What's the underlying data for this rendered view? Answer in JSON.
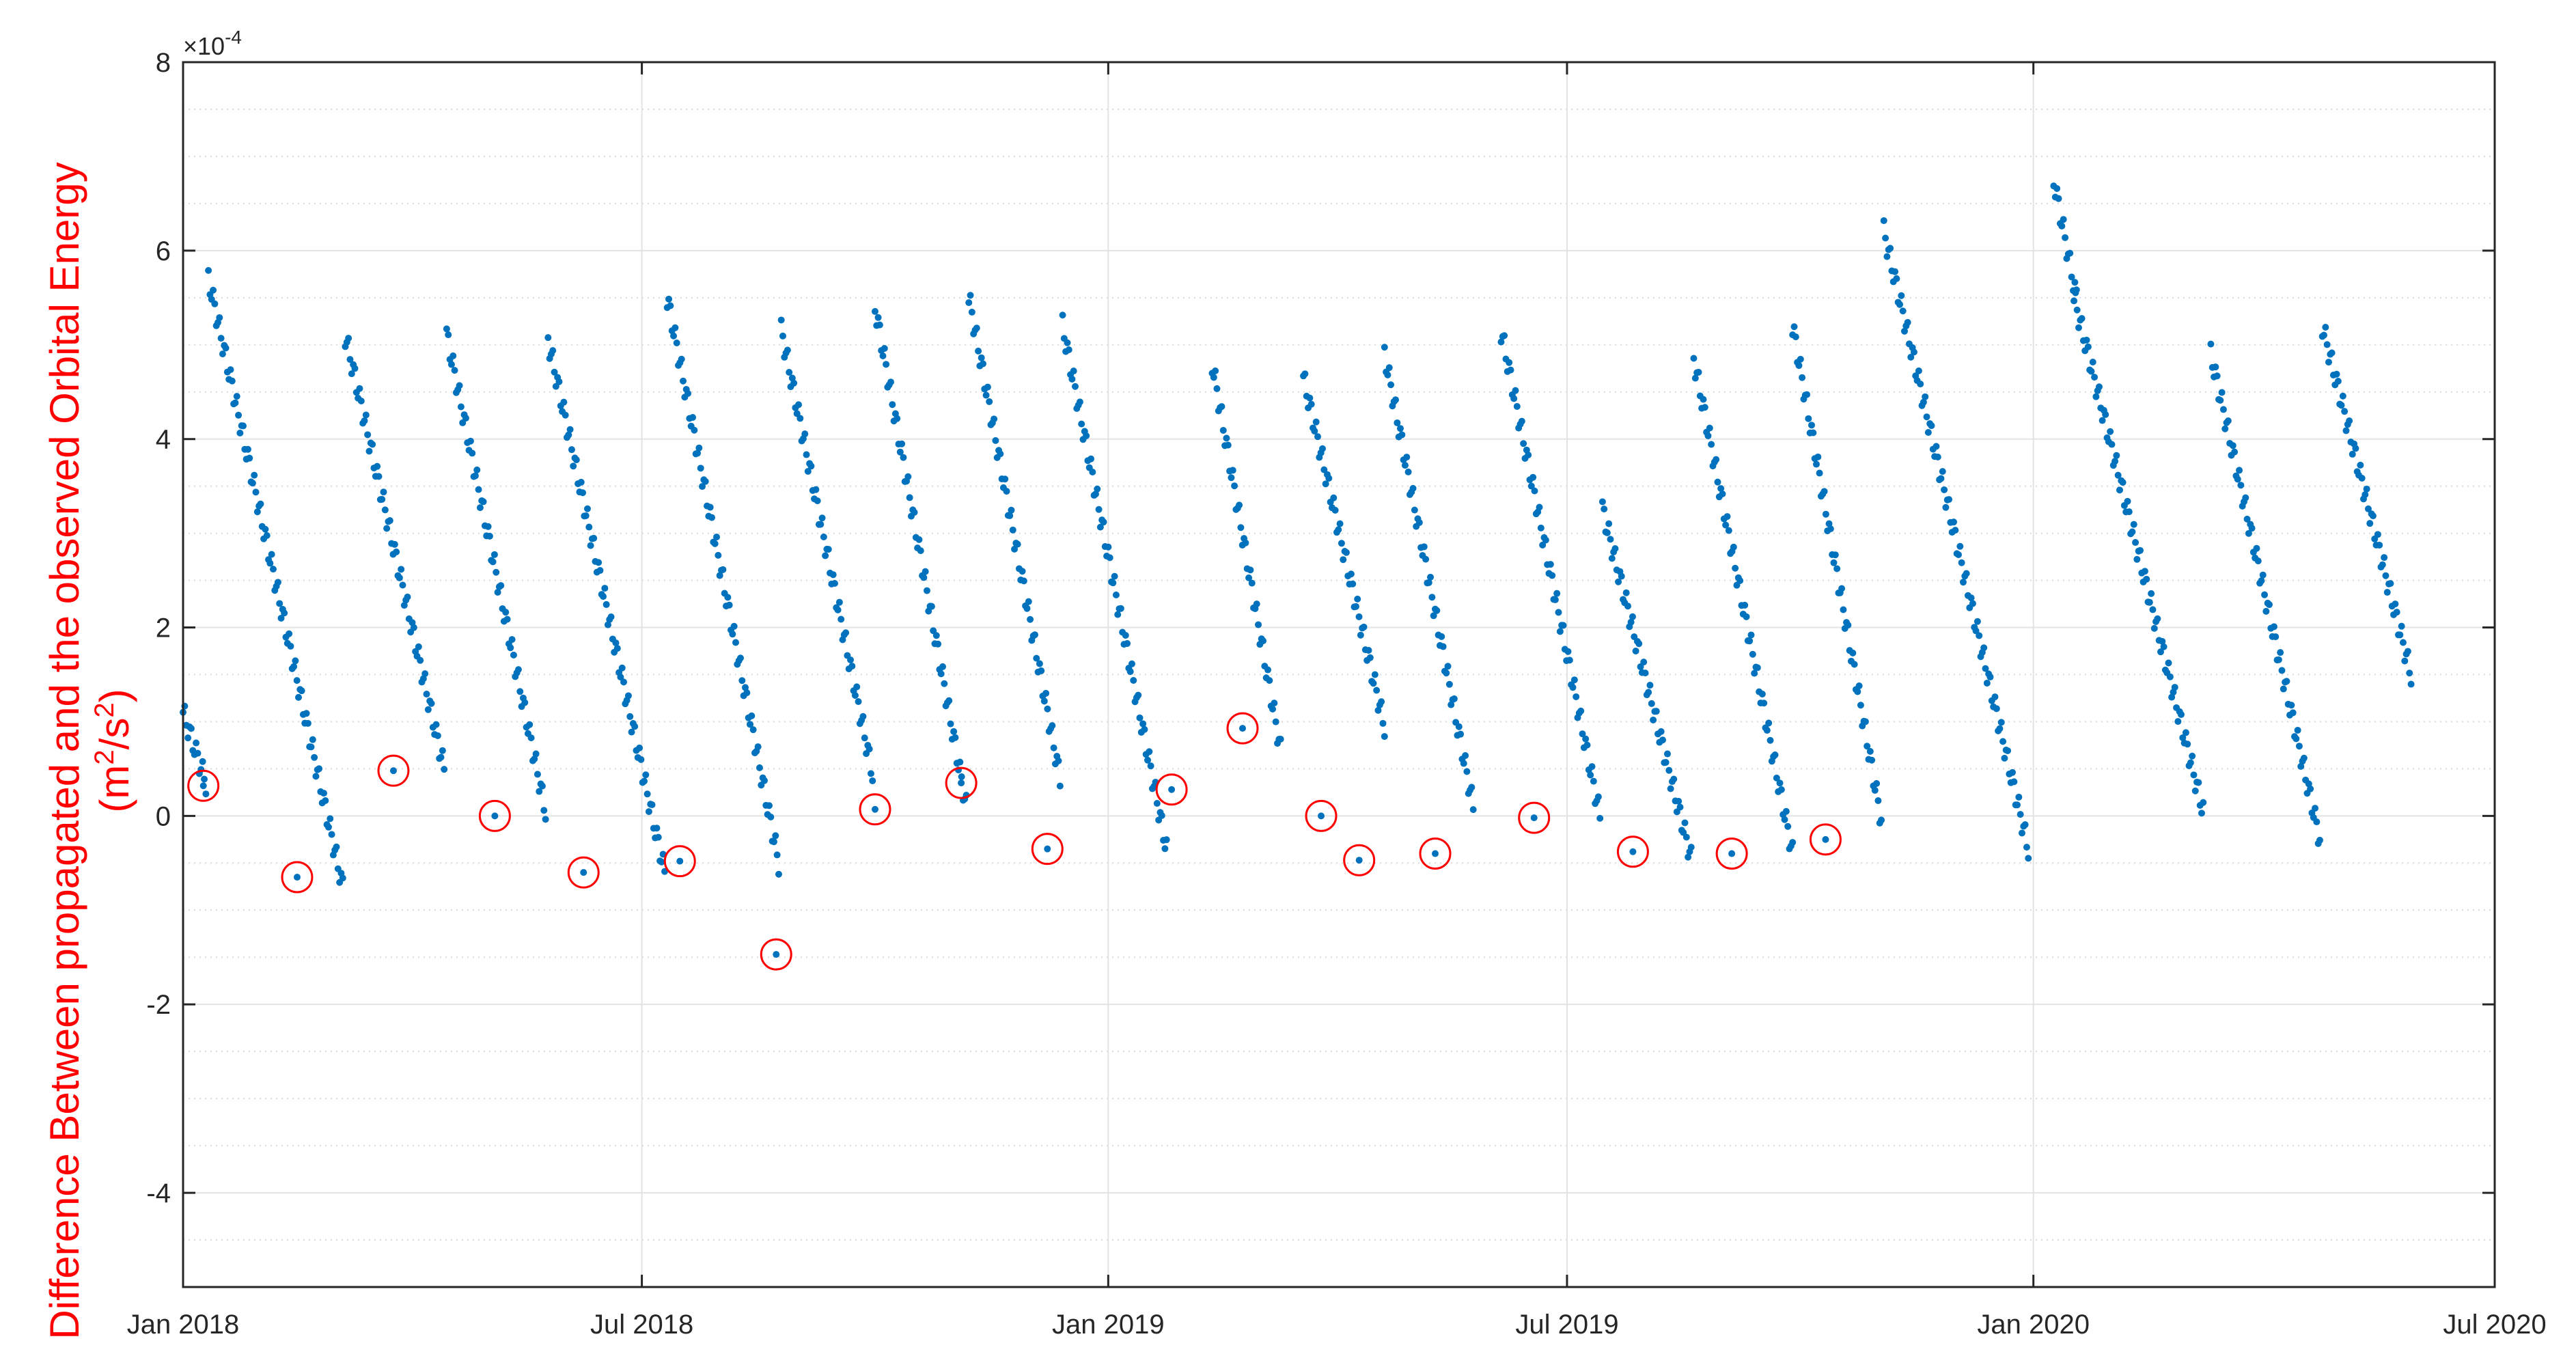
{
  "chart_data": {
    "type": "scatter",
    "ylabel_line1": "Difference Between propagated and the observed Orbital Energy",
    "ylabel_line2_base": "(m",
    "ylabel_line2_sup1": "2",
    "ylabel_line2_mid": "/s",
    "ylabel_line2_sup2": "2",
    "ylabel_line2_end": ")",
    "exponent_base": "×10",
    "exponent_power": "-4",
    "xlim": [
      "2018-01-01",
      "2020-07-01"
    ],
    "ylim": [
      -5,
      8
    ],
    "yticks": [
      -4,
      -2,
      0,
      2,
      4,
      6,
      8
    ],
    "yminor_step": 0.5,
    "xticks": [
      "2018-01-01",
      "2018-07-01",
      "2019-01-01",
      "2019-07-01",
      "2020-01-01",
      "2020-07-01"
    ],
    "xtick_labels": [
      "Jan 2018",
      "Jul 2018",
      "Jan 2019",
      "Jul 2019",
      "Jan 2020",
      "Jul 2020"
    ],
    "grid": true,
    "point_color": "#0072BD",
    "marker_color": "#ff0000",
    "segments": [
      {
        "t0": "2018-01-01",
        "t1": "2018-01-10",
        "y0": 1.1,
        "y1": 0.35
      },
      {
        "t0": "2018-01-11",
        "t1": "2018-03-05",
        "y0": 5.7,
        "y1": -0.75
      },
      {
        "t0": "2018-03-06",
        "t1": "2018-04-14",
        "y0": 5.1,
        "y1": 0.5
      },
      {
        "t0": "2018-04-15",
        "t1": "2018-05-24",
        "y0": 5.1,
        "y1": 0.05
      },
      {
        "t0": "2018-05-25",
        "t1": "2018-07-10",
        "y0": 5.05,
        "y1": -0.6
      },
      {
        "t0": "2018-07-11",
        "t1": "2018-08-24",
        "y0": 5.5,
        "y1": -0.5
      },
      {
        "t0": "2018-08-25",
        "t1": "2018-09-30",
        "y0": 5.15,
        "y1": 0.45
      },
      {
        "t0": "2018-10-01",
        "t1": "2018-11-06",
        "y0": 5.4,
        "y1": 0.1
      },
      {
        "t0": "2018-11-07",
        "t1": "2018-12-13",
        "y0": 5.5,
        "y1": 0.4
      },
      {
        "t0": "2018-12-14",
        "t1": "2019-01-24",
        "y0": 5.2,
        "y1": -0.35
      },
      {
        "t0": "2019-02-11",
        "t1": "2019-03-10",
        "y0": 4.8,
        "y1": 0.7
      },
      {
        "t0": "2019-03-19",
        "t1": "2019-04-20",
        "y0": 4.65,
        "y1": 0.95
      },
      {
        "t0": "2019-04-20",
        "t1": "2019-05-25",
        "y0": 4.9,
        "y1": 0.1
      },
      {
        "t0": "2019-06-05",
        "t1": "2019-07-14",
        "y0": 5.15,
        "y1": 0.0
      },
      {
        "t0": "2019-07-15",
        "t1": "2019-08-19",
        "y0": 3.25,
        "y1": -0.45
      },
      {
        "t0": "2019-08-20",
        "t1": "2019-09-28",
        "y0": 4.85,
        "y1": -0.4
      },
      {
        "t0": "2019-09-28",
        "t1": "2019-11-02",
        "y0": 5.2,
        "y1": -0.05
      },
      {
        "t0": "2019-11-03",
        "t1": "2019-12-30",
        "y0": 6.2,
        "y1": -0.35
      },
      {
        "t0": "2020-01-09",
        "t1": "2020-01-18",
        "y0": 6.75,
        "y1": 5.5
      },
      {
        "t0": "2020-01-17",
        "t1": "2020-03-08",
        "y0": 5.5,
        "y1": 0.05
      },
      {
        "t0": "2020-03-11",
        "t1": "2020-04-23",
        "y0": 4.9,
        "y1": -0.25
      },
      {
        "t0": "2020-04-24",
        "t1": "2020-05-29",
        "y0": 5.2,
        "y1": 1.5
      }
    ],
    "circled_points": [
      {
        "t": "2018-01-09",
        "y": 0.32
      },
      {
        "t": "2018-02-15",
        "y": -0.65
      },
      {
        "t": "2018-03-25",
        "y": 0.48
      },
      {
        "t": "2018-05-04",
        "y": 0.0
      },
      {
        "t": "2018-06-08",
        "y": -0.6
      },
      {
        "t": "2018-07-16",
        "y": -0.48
      },
      {
        "t": "2018-08-23",
        "y": -1.47
      },
      {
        "t": "2018-10-01",
        "y": 0.07
      },
      {
        "t": "2018-11-04",
        "y": 0.35
      },
      {
        "t": "2018-12-08",
        "y": -0.35
      },
      {
        "t": "2019-01-26",
        "y": 0.28
      },
      {
        "t": "2019-02-23",
        "y": 0.93
      },
      {
        "t": "2019-03-26",
        "y": 0.0
      },
      {
        "t": "2019-04-10",
        "y": -0.47
      },
      {
        "t": "2019-05-10",
        "y": -0.4
      },
      {
        "t": "2019-06-18",
        "y": -0.02
      },
      {
        "t": "2019-07-27",
        "y": -0.38
      },
      {
        "t": "2019-09-04",
        "y": -0.4
      },
      {
        "t": "2019-10-11",
        "y": -0.25
      }
    ]
  }
}
